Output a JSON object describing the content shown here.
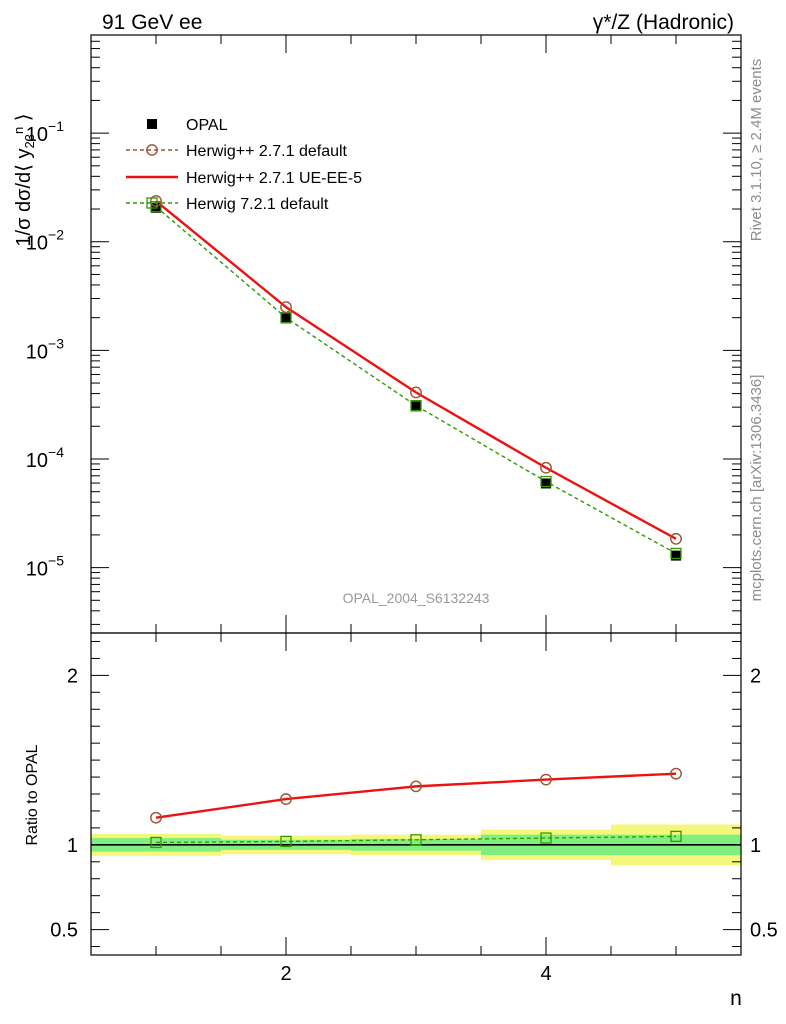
{
  "header": {
    "left": "91 GeV ee",
    "right_prefix": "γ*/Z",
    "right_suffix": " (Hadronic)"
  },
  "side_labels": {
    "rivet": "Rivet 3.1.10, ≥ 2.4M events",
    "mcplots": "mcplots.cern.ch [arXiv:1306.3436]"
  },
  "watermark": "OPAL_2004_S6132243",
  "colors": {
    "opal": "#000000",
    "herwigpp_default": "#a0522d",
    "herwigpp_ueee5": "#ee1111",
    "herwig721": "#339900",
    "band_inner": "#7ff07f",
    "band_outer": "#f4f77a"
  },
  "chart_data": [
    {
      "type": "line",
      "yscale": "log",
      "ylabel": "1/σ dσ/d⟨ y23n ⟩",
      "xlim": [
        0.5,
        5.5
      ],
      "ylim": [
        2.5e-06,
        0.8
      ],
      "yticks": [
        {
          "value": 1e-05,
          "mantissa": "10",
          "exp": "−5"
        },
        {
          "value": 0.0001,
          "mantissa": "10",
          "exp": "−4"
        },
        {
          "value": 0.001,
          "mantissa": "10",
          "exp": "−3"
        },
        {
          "value": 0.01,
          "mantissa": "10",
          "exp": "−2"
        },
        {
          "value": 0.1,
          "mantissa": "10",
          "exp": "−1"
        }
      ],
      "x": [
        1,
        2,
        3,
        4,
        5
      ],
      "series": [
        {
          "name": "OPAL",
          "values": [
            0.0205,
            0.00197,
            0.000305,
            5.95e-05,
            1.29e-05
          ]
        },
        {
          "name": "Herwig++ 2.7.1 default",
          "values": [
            0.0237,
            0.0025,
            0.00041,
            8.3e-05,
            1.84e-05
          ]
        },
        {
          "name": "Herwig++ 2.7.1 UE-EE-5",
          "values": [
            0.0237,
            0.0025,
            0.00041,
            8.3e-05,
            1.84e-05
          ]
        },
        {
          "name": "Herwig 7.2.1 default",
          "values": [
            0.021,
            0.002,
            0.00031,
            6.2e-05,
            1.35e-05
          ]
        }
      ]
    },
    {
      "type": "line",
      "ylabel": "Ratio to OPAL",
      "xlabel": "n",
      "xlim": [
        0.5,
        5.5
      ],
      "ylim": [
        0.35,
        2.25
      ],
      "yticks": [
        0.5,
        1,
        2
      ],
      "ytick_labels": [
        "0.5",
        "1",
        "2"
      ],
      "xticks": [
        2,
        4
      ],
      "xtick_labels": [
        "2",
        "4"
      ],
      "x": [
        1,
        2,
        3,
        4,
        5
      ],
      "bands": {
        "inner": [
          0.04,
          0.03,
          0.035,
          0.06,
          0.06
        ],
        "outer": [
          0.065,
          0.055,
          0.06,
          0.09,
          0.12
        ]
      },
      "series": [
        {
          "name": "Herwig++ 2.7.1 default",
          "values": [
            1.16,
            1.27,
            1.345,
            1.385,
            1.42
          ]
        },
        {
          "name": "Herwig++ 2.7.1 UE-EE-5",
          "values": [
            1.16,
            1.27,
            1.345,
            1.385,
            1.42
          ]
        },
        {
          "name": "Herwig 7.2.1 default",
          "values": [
            1.014,
            1.02,
            1.03,
            1.04,
            1.05
          ]
        }
      ]
    }
  ]
}
